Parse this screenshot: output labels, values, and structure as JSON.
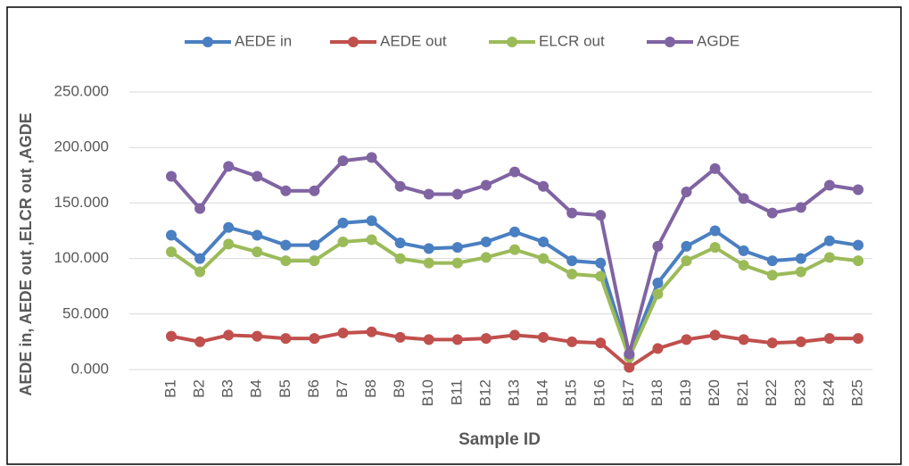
{
  "chart_data": {
    "type": "line",
    "ylabel": "AEDE in, AEDE out ,ELCR out ,AGDE",
    "xlabel": "Sample ID",
    "categories": [
      "B1",
      "B2",
      "B3",
      "B4",
      "B5",
      "B6",
      "B7",
      "B8",
      "B9",
      "B10",
      "B11",
      "B12",
      "B13",
      "B14",
      "B15",
      "B16",
      "B17",
      "B18",
      "B19",
      "B20",
      "B21",
      "B22",
      "B23",
      "B24",
      "B25"
    ],
    "series": [
      {
        "name": "AEDE in",
        "color": "#4a7fc1",
        "values": [
          121,
          100,
          128,
          121,
          112,
          112,
          132,
          134,
          114,
          109,
          110,
          115,
          124,
          115,
          98,
          96,
          13,
          78,
          111,
          125,
          107,
          98,
          100,
          116,
          112
        ]
      },
      {
        "name": "AEDE out",
        "color": "#c0504d",
        "values": [
          30,
          25,
          31,
          30,
          28,
          28,
          33,
          34,
          29,
          27,
          27,
          28,
          31,
          29,
          25,
          24,
          2,
          19,
          27,
          31,
          27,
          24,
          25,
          28,
          28
        ]
      },
      {
        "name": "ELCR out",
        "color": "#9bbb59",
        "values": [
          106,
          88,
          113,
          106,
          98,
          98,
          115,
          117,
          100,
          96,
          96,
          101,
          108,
          100,
          86,
          84,
          11,
          68,
          98,
          110,
          94,
          85,
          88,
          101,
          98
        ]
      },
      {
        "name": "AGDE",
        "color": "#8064a2",
        "values": [
          174,
          145,
          183,
          174,
          161,
          161,
          188,
          191,
          165,
          158,
          158,
          166,
          178,
          165,
          141,
          139,
          14,
          111,
          160,
          181,
          154,
          141,
          146,
          166,
          162
        ]
      }
    ],
    "ylim": [
      0,
      250
    ],
    "yticks": [
      {
        "value": 0,
        "label": "0.000"
      },
      {
        "value": 50,
        "label": "50.000"
      },
      {
        "value": 100,
        "label": "100.000"
      },
      {
        "value": 150,
        "label": "150.000"
      },
      {
        "value": 200,
        "label": "200.000"
      },
      {
        "value": 250,
        "label": "250.000"
      }
    ],
    "grid": true,
    "legend": "top"
  }
}
